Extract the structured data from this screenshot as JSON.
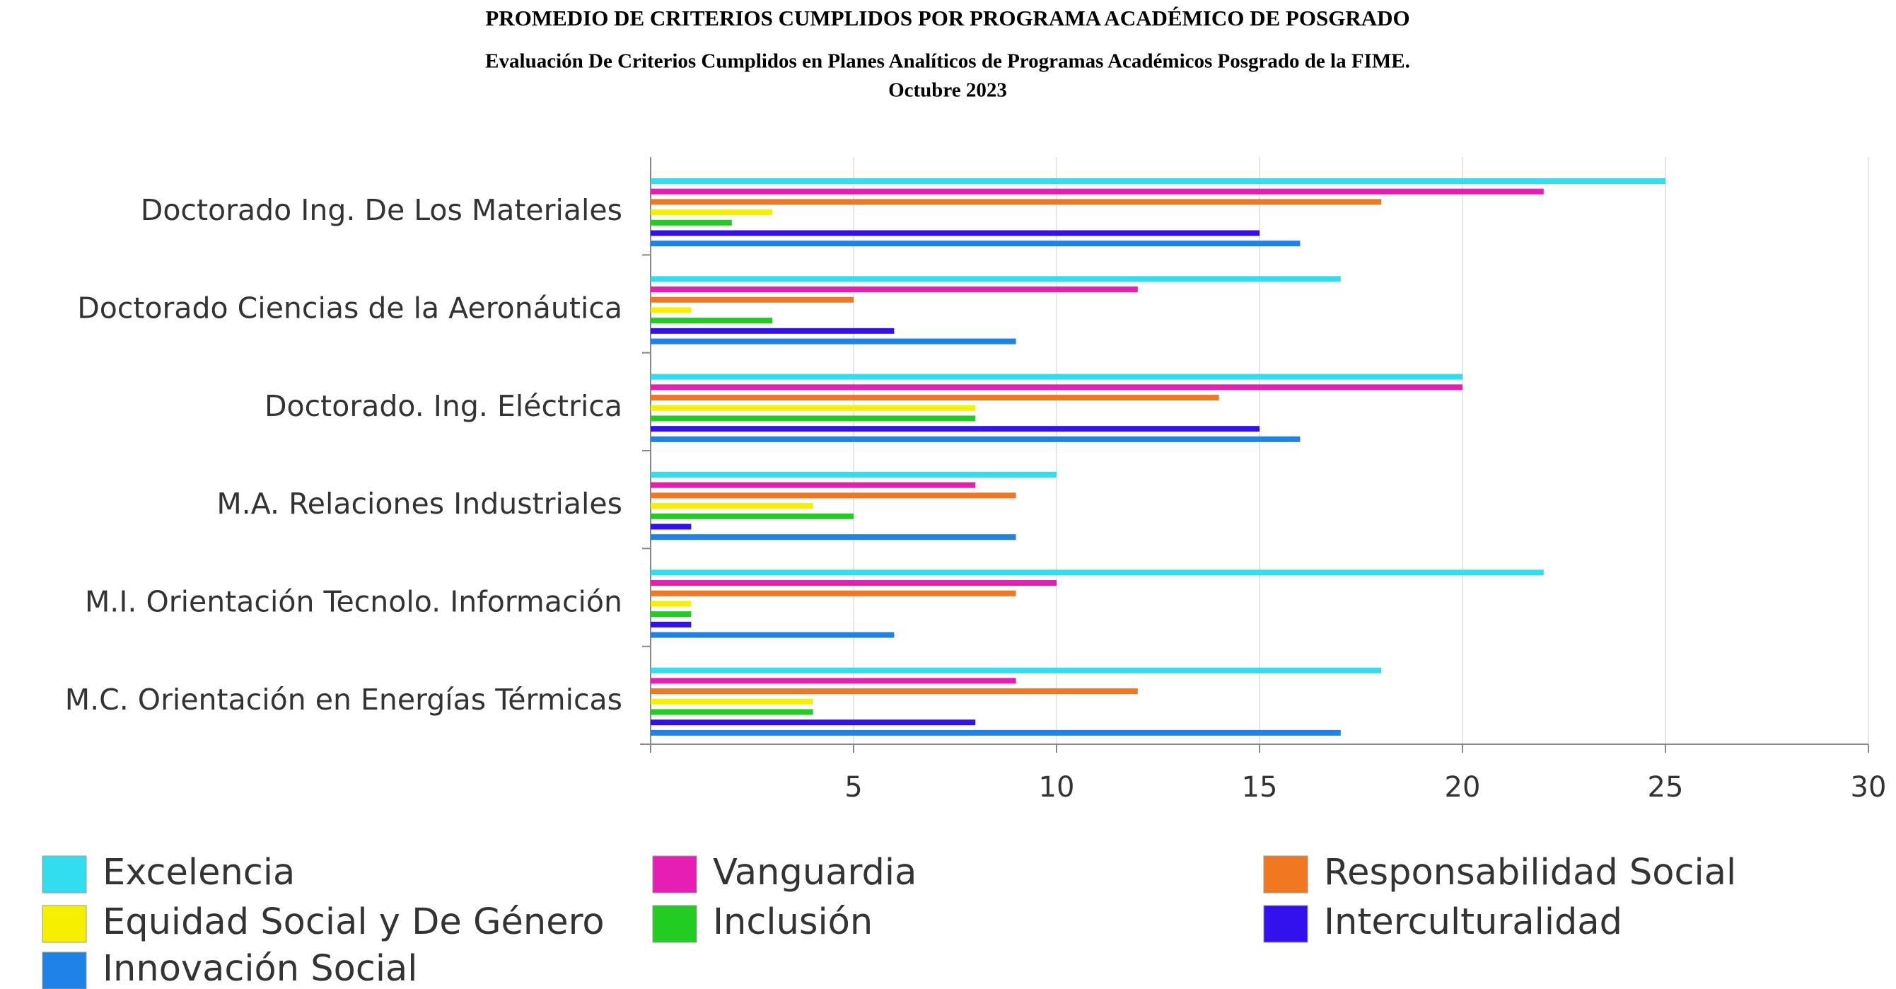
{
  "chart_data": {
    "type": "barh",
    "title": "PROMEDIO DE CRITERIOS CUMPLIDOS POR PROGRAMA ACADÉMICO DE POSGRADO",
    "subtitle": [
      "Evaluación De Criterios Cumplidos en Planes Analíticos de Programas Académicos Posgrado de la FIME.",
      "Octubre 2023"
    ],
    "categories": [
      "Doctorado Ing. De Los Materiales",
      "Doctorado Ciencias de la Aeronáutica",
      "Doctorado. Ing. Eléctrica",
      "M.A. Relaciones Industriales",
      "M.I. Orientación Tecnolo. Información",
      "M.C. Orientación en Energías Térmicas"
    ],
    "series": [
      {
        "name": "Excelencia",
        "color": "#33ddf0",
        "values": [
          25,
          17,
          20,
          10,
          22,
          18
        ]
      },
      {
        "name": "Vanguardia",
        "color": "#e61eb4",
        "values": [
          22,
          12,
          20,
          8,
          10,
          9
        ]
      },
      {
        "name": "Responsabilidad Social",
        "color": "#f07820",
        "values": [
          18,
          5,
          14,
          9,
          9,
          12
        ]
      },
      {
        "name": "Equidad Social y De Género",
        "color": "#f5f000",
        "values": [
          3,
          1,
          8,
          4,
          1,
          4
        ]
      },
      {
        "name": "Inclusión",
        "color": "#22cc22",
        "values": [
          2,
          3,
          8,
          5,
          1,
          4
        ]
      },
      {
        "name": "Interculturalidad",
        "color": "#3311ee",
        "values": [
          15,
          6,
          15,
          1,
          1,
          8
        ]
      },
      {
        "name": "Innovación Social",
        "color": "#1e82e6",
        "values": [
          16,
          9,
          16,
          9,
          6,
          17
        ]
      }
    ],
    "xlim": [
      0,
      30
    ],
    "xticks": [
      5,
      10,
      15,
      20,
      25,
      30
    ],
    "grid": true
  }
}
